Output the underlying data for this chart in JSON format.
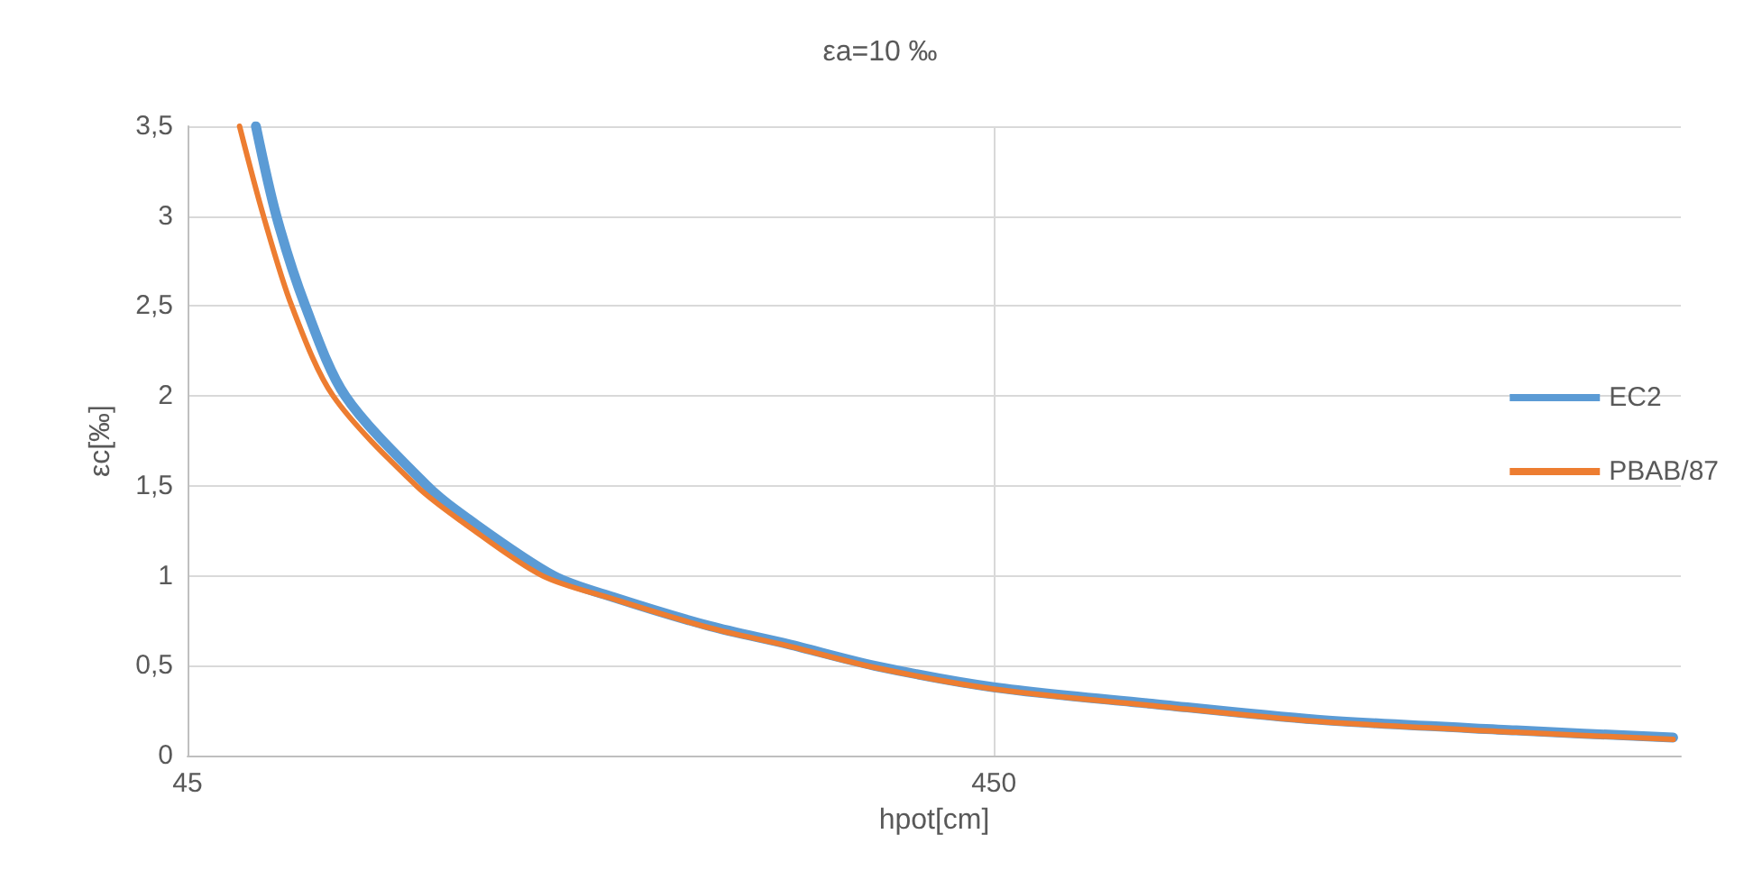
{
  "chart_data": {
    "type": "line",
    "title": "εa=10 ‰",
    "xlabel": "hpot[cm]",
    "ylabel": "εc[‰]",
    "log": "x",
    "xlim": [
      45,
      3200
    ],
    "xticks": [
      45,
      450
    ],
    "ylim": [
      0,
      3.5
    ],
    "yticks": [
      0,
      {
        "value": 0.5,
        "label": "0,5"
      },
      1,
      {
        "value": 1.5,
        "label": "1,5"
      },
      2,
      {
        "value": 2.5,
        "label": "2,5"
      },
      3,
      {
        "value": 3.5,
        "label": "3,5"
      }
    ],
    "grid": true,
    "legend": "right",
    "marker": "none",
    "line_style": "solid",
    "series": [
      {
        "name": "EC2",
        "color": "#5b9bd5",
        "x": [
          54.7,
          58,
          63,
          70.6,
          89.2,
          100,
          128,
          152,
          200,
          250,
          320,
          450,
          700,
          1132,
          2000,
          3130
        ],
        "values": [
          3.5,
          3,
          2.5,
          2,
          1.5,
          1.32,
          1,
          0.88,
          0.72,
          0.62,
          0.5,
          0.38,
          0.29,
          0.2,
          0.14,
          0.1
        ]
      },
      {
        "name": "PBAB/87",
        "color": "#ed7d31",
        "x": [
          52.2,
          55.9,
          60.6,
          68.2,
          86.5,
          100,
          124,
          152,
          200,
          250,
          320,
          450,
          700,
          1132,
          2000,
          3130
        ],
        "values": [
          3.5,
          3,
          2.5,
          2,
          1.5,
          1.28,
          1,
          0.87,
          0.71,
          0.61,
          0.49,
          0.37,
          0.28,
          0.19,
          0.13,
          0.09
        ]
      }
    ]
  }
}
